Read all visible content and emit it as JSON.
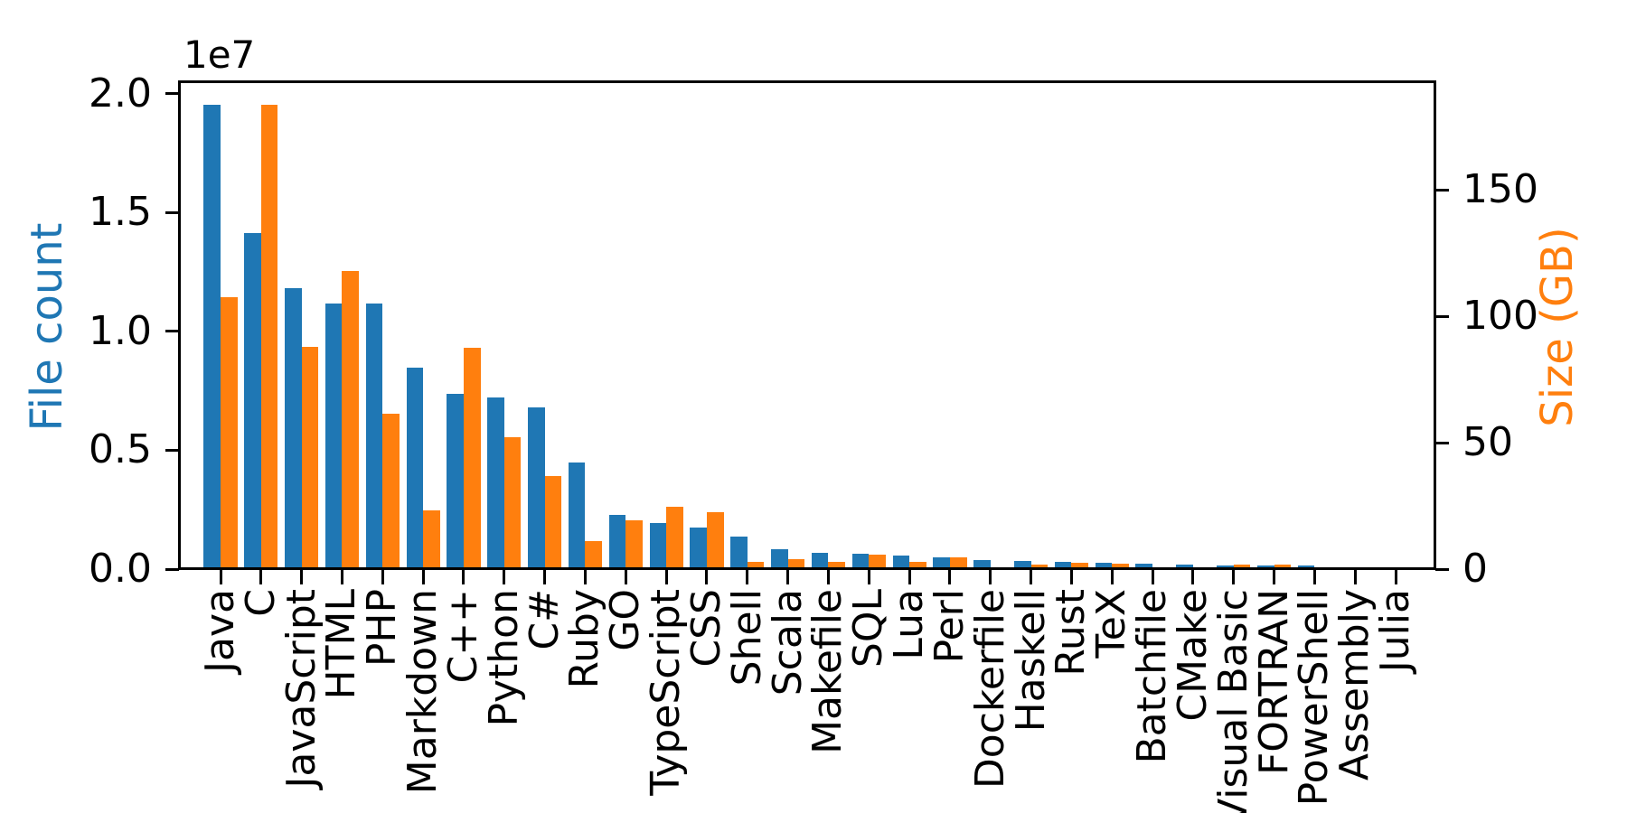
{
  "chart_data": {
    "type": "bar",
    "title": "",
    "grid": false,
    "legend": "none",
    "background": "#ffffff",
    "categories": [
      "Java",
      "C",
      "JavaScript",
      "HTML",
      "PHP",
      "Markdown",
      "C++",
      "Python",
      "C#",
      "Ruby",
      "GO",
      "TypeScript",
      "CSS",
      "Shell",
      "Scala",
      "Makefile",
      "SQL",
      "Lua",
      "Perl",
      "Dockerfile",
      "Haskell",
      "Rust",
      "TeX",
      "Batchfile",
      "CMake",
      "Visual Basic",
      "FORTRAN",
      "PowerShell",
      "Assembly",
      "Julia"
    ],
    "series": [
      {
        "name": "File count",
        "axis": "left",
        "color": "#1f77b4",
        "values": [
          19548190,
          14143113,
          11839883,
          11178557,
          11177610,
          8464626,
          7380520,
          7226626,
          6811652,
          4473331,
          2265436,
          1940406,
          1734406,
          1385648,
          835755,
          679430,
          656671,
          578554,
          497949,
          366505,
          340623,
          322431,
          251015,
          236945,
          175282,
          155652,
          142038,
          136846,
          82905,
          58317
        ]
      },
      {
        "name": "Size (GB)",
        "axis": "right",
        "color": "#ff7f0e",
        "values": [
          107.7,
          183.83,
          87.82,
          118.12,
          61.41,
          23.09,
          87.73,
          52.03,
          36.83,
          10.95,
          19.28,
          24.59,
          22.67,
          3.01,
          3.87,
          2.92,
          5.67,
          2.81,
          4.7,
          0.71,
          1.85,
          2.68,
          2.15,
          0.7,
          0.54,
          1.91,
          1.62,
          0.69,
          0.78,
          0.29
        ]
      }
    ],
    "axes": {
      "left": {
        "label": "File count",
        "color": "#1f77b4",
        "offset_text": "1e7",
        "max": 20526000,
        "ticks": [
          {
            "label": "0.0",
            "value": 0
          },
          {
            "label": "0.5",
            "value": 5000000
          },
          {
            "label": "1.0",
            "value": 10000000
          },
          {
            "label": "1.5",
            "value": 15000000
          },
          {
            "label": "2.0",
            "value": 20000000
          }
        ]
      },
      "right": {
        "label": "Size (GB)",
        "color": "#ff7f0e",
        "max": 193,
        "ticks": [
          {
            "label": "0",
            "value": 0
          },
          {
            "label": "50",
            "value": 50
          },
          {
            "label": "100",
            "value": 100
          },
          {
            "label": "150",
            "value": 150
          }
        ]
      }
    }
  }
}
